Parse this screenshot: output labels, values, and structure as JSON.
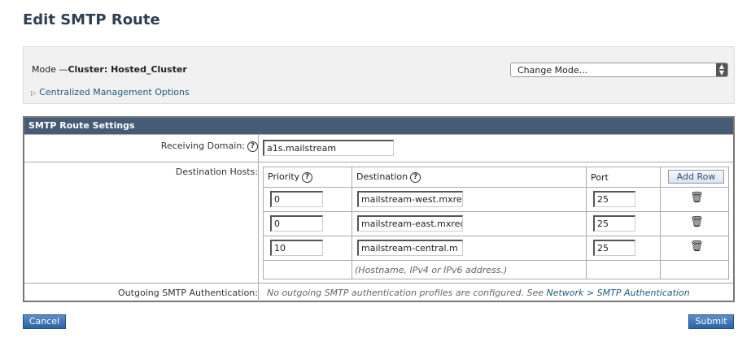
{
  "page_title": "Edit SMTP Route",
  "mode": {
    "label": "Mode —",
    "value": "Cluster: Hosted_Cluster",
    "change_mode": "Change Mode...",
    "centralized_link": "Centralized Management Options"
  },
  "settings": {
    "header": "SMTP Route Settings",
    "receiving_domain_label": "Receiving Domain:",
    "receiving_domain_value": "a1s.mailstream",
    "destination_hosts_label": "Destination Hosts:",
    "columns": {
      "priority": "Priority",
      "destination": "Destination",
      "port": "Port",
      "add_row": "Add Row"
    },
    "rows": [
      {
        "priority": "0",
        "destination": "mailstream-west.mxre",
        "port": "25"
      },
      {
        "priority": "0",
        "destination": "mailstream-east.mxrec",
        "port": "25"
      },
      {
        "priority": "10",
        "destination": "mailstream-central.m",
        "port": "25"
      }
    ],
    "hint": "(Hostname, IPv4 or IPv6 address.)",
    "outgoing_label": "Outgoing SMTP Authentication:",
    "outgoing_text": "No outgoing SMTP authentication profiles are configured. See ",
    "outgoing_link": "Network > SMTP Authentication"
  },
  "buttons": {
    "cancel": "Cancel",
    "submit": "Submit"
  },
  "colors": {
    "header_bg": "#465b75",
    "link": "#1e5b80",
    "button": "#2b63a6"
  }
}
